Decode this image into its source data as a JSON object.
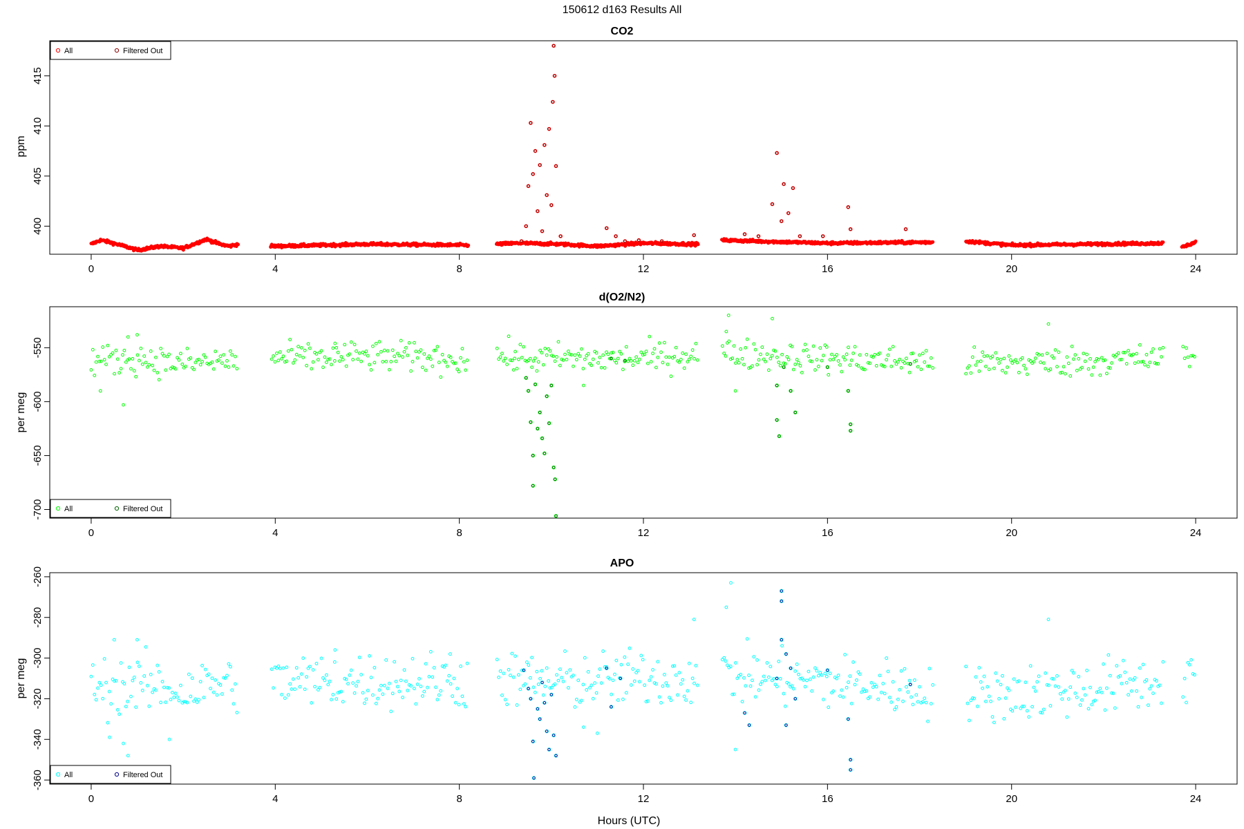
{
  "page": {
    "main_title": "150612   d163   Results All",
    "x_label": "Hours (UTC)"
  },
  "chart_data": [
    {
      "type": "scatter",
      "title": "CO2",
      "xlabel": "",
      "ylabel": "ppm",
      "xlim": [
        -0.9,
        24.9
      ],
      "ylim": [
        397.2,
        418.5
      ],
      "x_ticks": [
        0,
        4,
        8,
        12,
        16,
        20,
        24
      ],
      "x_tick_labels": [
        "0",
        "4",
        "8",
        "12",
        "16",
        "20",
        "24"
      ],
      "y_ticks": [
        400,
        405,
        410,
        415
      ],
      "y_tick_labels": [
        "400",
        "405",
        "410",
        "415"
      ],
      "legend": {
        "position": "top-left",
        "entries": [
          "All",
          "Filtered Out"
        ]
      },
      "colors": {
        "all": "#ff0000",
        "filtered": "#8b0000"
      },
      "gaps": [
        [
          3.2,
          3.9
        ],
        [
          8.2,
          8.8
        ],
        [
          13.2,
          13.7
        ],
        [
          18.3,
          19.0
        ],
        [
          23.3,
          23.7
        ]
      ],
      "series": [
        {
          "name": "All",
          "profile": [
            [
              0,
              398.2
            ],
            [
              0.2,
              398.6
            ],
            [
              0.4,
              398.4
            ],
            [
              0.8,
              397.9
            ],
            [
              1.0,
              397.6
            ],
            [
              1.5,
              398.0
            ],
            [
              2.0,
              397.8
            ],
            [
              2.5,
              398.7
            ],
            [
              2.8,
              398.2
            ],
            [
              3.0,
              398.0
            ],
            [
              3.2,
              398.2
            ],
            [
              4.0,
              398.0
            ],
            [
              6.0,
              398.2
            ],
            [
              8.2,
              398.1
            ],
            [
              8.8,
              398.2
            ],
            [
              9.3,
              398.3
            ],
            [
              10.2,
              398.2
            ],
            [
              11.0,
              398.0
            ],
            [
              12.0,
              398.3
            ],
            [
              13.2,
              398.2
            ],
            [
              13.7,
              398.6
            ],
            [
              16.0,
              398.3
            ],
            [
              18.3,
              398.4
            ],
            [
              19.0,
              398.5
            ],
            [
              20.0,
              398.1
            ],
            [
              23.3,
              398.3
            ],
            [
              23.7,
              397.9
            ],
            [
              24.0,
              398.4
            ]
          ],
          "spread": 0.12
        },
        {
          "name": "Filtered Out",
          "points": [
            [
              9.35,
              398.5
            ],
            [
              9.45,
              400.0
            ],
            [
              9.5,
              404.0
            ],
            [
              9.55,
              410.3
            ],
            [
              9.6,
              405.2
            ],
            [
              9.65,
              407.5
            ],
            [
              9.7,
              401.5
            ],
            [
              9.75,
              406.1
            ],
            [
              9.8,
              399.5
            ],
            [
              9.85,
              408.1
            ],
            [
              9.9,
              403.1
            ],
            [
              9.95,
              409.7
            ],
            [
              10.0,
              402.1
            ],
            [
              10.03,
              412.4
            ],
            [
              10.05,
              418.0
            ],
            [
              10.07,
              415.0
            ],
            [
              10.1,
              406.0
            ],
            [
              10.2,
              399.0
            ],
            [
              11.2,
              399.8
            ],
            [
              11.4,
              399.0
            ],
            [
              11.6,
              398.5
            ],
            [
              11.9,
              398.6
            ],
            [
              12.4,
              398.5
            ],
            [
              13.1,
              399.1
            ],
            [
              14.2,
              399.2
            ],
            [
              14.5,
              399.0
            ],
            [
              14.8,
              402.2
            ],
            [
              14.9,
              407.3
            ],
            [
              15.0,
              400.5
            ],
            [
              15.05,
              404.2
            ],
            [
              15.15,
              401.3
            ],
            [
              15.25,
              403.8
            ],
            [
              15.4,
              399.0
            ],
            [
              15.9,
              399.0
            ],
            [
              16.45,
              401.9
            ],
            [
              16.5,
              399.7
            ],
            [
              17.7,
              399.7
            ]
          ]
        }
      ]
    },
    {
      "type": "scatter",
      "title": "d(O2/N2)",
      "xlabel": "",
      "ylabel": "per meg",
      "xlim": [
        -0.9,
        24.9
      ],
      "ylim": [
        -708,
        -512
      ],
      "x_ticks": [
        0,
        4,
        8,
        12,
        16,
        20,
        24
      ],
      "x_tick_labels": [
        "0",
        "4",
        "8",
        "12",
        "16",
        "20",
        "24"
      ],
      "y_ticks": [
        -700,
        -650,
        -600,
        -550
      ],
      "y_tick_labels": [
        "-700",
        "-650",
        "-600",
        "-550"
      ],
      "legend": {
        "position": "bottom-left",
        "entries": [
          "All",
          "Filtered Out"
        ]
      },
      "colors": {
        "all": "#00ff00",
        "filtered": "#006400"
      },
      "gaps": [
        [
          3.2,
          3.9
        ],
        [
          8.2,
          8.8
        ],
        [
          13.2,
          13.7
        ],
        [
          18.3,
          19.0
        ],
        [
          23.3,
          23.7
        ]
      ],
      "series": [
        {
          "name": "All",
          "profile": [
            [
              0,
              -562
            ],
            [
              1,
              -560
            ],
            [
              2,
              -565
            ],
            [
              3,
              -562
            ],
            [
              4,
              -560
            ],
            [
              6,
              -558
            ],
            [
              8,
              -560
            ],
            [
              8.8,
              -558
            ],
            [
              9.3,
              -560
            ],
            [
              10.2,
              -560
            ],
            [
              12,
              -560
            ],
            [
              13.2,
              -555
            ],
            [
              13.7,
              -555
            ],
            [
              16,
              -560
            ],
            [
              18.3,
              -563
            ],
            [
              19,
              -565
            ],
            [
              21,
              -563
            ],
            [
              23.3,
              -560
            ],
            [
              23.7,
              -558
            ],
            [
              24,
              -555
            ]
          ],
          "spread": 7,
          "outliers": [
            [
              0.7,
              -603
            ],
            [
              0.2,
              -590
            ],
            [
              1.0,
              -538
            ],
            [
              0.8,
              -540
            ],
            [
              5.3,
              -546
            ],
            [
              13.85,
              -520
            ],
            [
              13.8,
              -535
            ],
            [
              14.0,
              -590
            ],
            [
              14.8,
              -523
            ],
            [
              10.7,
              -585
            ],
            [
              20.8,
              -528
            ],
            [
              9.2,
              -560
            ]
          ]
        },
        {
          "name": "Filtered Out",
          "points": [
            [
              9.45,
              -578
            ],
            [
              9.5,
              -590
            ],
            [
              9.55,
              -619
            ],
            [
              9.6,
              -650
            ],
            [
              9.6,
              -678
            ],
            [
              9.65,
              -584
            ],
            [
              9.7,
              -625
            ],
            [
              9.75,
              -610
            ],
            [
              9.8,
              -634
            ],
            [
              9.85,
              -648
            ],
            [
              9.9,
              -595
            ],
            [
              9.95,
              -620
            ],
            [
              10.0,
              -585
            ],
            [
              10.05,
              -661
            ],
            [
              10.08,
              -672
            ],
            [
              10.1,
              -706
            ],
            [
              11.3,
              -560
            ],
            [
              11.6,
              -562
            ],
            [
              14.9,
              -585
            ],
            [
              14.9,
              -617
            ],
            [
              14.95,
              -632
            ],
            [
              15.05,
              -568
            ],
            [
              15.2,
              -590
            ],
            [
              15.3,
              -610
            ],
            [
              16.0,
              -568
            ],
            [
              16.45,
              -590
            ],
            [
              16.5,
              -621
            ],
            [
              16.5,
              -627
            ],
            [
              17.8,
              -565
            ]
          ]
        }
      ]
    },
    {
      "type": "scatter",
      "title": "APO",
      "xlabel": "Hours (UTC)",
      "ylabel": "per meg",
      "xlim": [
        -0.9,
        24.9
      ],
      "ylim": [
        -362,
        -258
      ],
      "x_ticks": [
        0,
        4,
        8,
        12,
        16,
        20,
        24
      ],
      "x_tick_labels": [
        "0",
        "4",
        "8",
        "12",
        "16",
        "20",
        "24"
      ],
      "y_ticks": [
        -360,
        -340,
        -320,
        -300,
        -280,
        -260
      ],
      "y_tick_labels": [
        "-360",
        "-340",
        "-320",
        "-300",
        "-280",
        "-260"
      ],
      "legend": {
        "position": "bottom-left",
        "entries": [
          "All",
          "Filtered Out"
        ]
      },
      "colors": {
        "all": "#00ffff",
        "filtered": "#00008b"
      },
      "gaps": [
        [
          3.2,
          3.9
        ],
        [
          8.2,
          8.8
        ],
        [
          13.2,
          13.7
        ],
        [
          18.3,
          19.0
        ],
        [
          23.3,
          23.7
        ]
      ],
      "series": [
        {
          "name": "All",
          "profile": [
            [
              0,
              -315
            ],
            [
              1,
              -313
            ],
            [
              2,
              -316
            ],
            [
              3,
              -312
            ],
            [
              4,
              -312
            ],
            [
              6,
              -311
            ],
            [
              8,
              -311
            ],
            [
              8.8,
              -310
            ],
            [
              9.3,
              -311
            ],
            [
              10.2,
              -312
            ],
            [
              12,
              -310
            ],
            [
              13.2,
              -309
            ],
            [
              13.7,
              -308
            ],
            [
              16,
              -312
            ],
            [
              18.3,
              -316
            ],
            [
              19,
              -318
            ],
            [
              21,
              -316
            ],
            [
              23.3,
              -312
            ],
            [
              23.7,
              -310
            ],
            [
              24,
              -305
            ]
          ],
          "spread": 7,
          "outliers": [
            [
              0.4,
              -339
            ],
            [
              0.7,
              -342
            ],
            [
              0.8,
              -348
            ],
            [
              1.0,
              -291
            ],
            [
              0.5,
              -291
            ],
            [
              1.7,
              -340
            ],
            [
              13.1,
              -281
            ],
            [
              13.9,
              -263
            ],
            [
              13.8,
              -275
            ],
            [
              14.0,
              -345
            ],
            [
              20.8,
              -281
            ],
            [
              10.7,
              -334
            ],
            [
              11.0,
              -337
            ],
            [
              5.3,
              -296
            ],
            [
              7.8,
              -298
            ]
          ]
        },
        {
          "name": "Filtered Out",
          "points": [
            [
              9.4,
              -306
            ],
            [
              9.5,
              -315
            ],
            [
              9.55,
              -320
            ],
            [
              9.6,
              -341
            ],
            [
              9.62,
              -359
            ],
            [
              9.7,
              -325
            ],
            [
              9.75,
              -330
            ],
            [
              9.8,
              -312
            ],
            [
              9.85,
              -322
            ],
            [
              9.9,
              -336
            ],
            [
              9.95,
              -345
            ],
            [
              10.0,
              -318
            ],
            [
              10.05,
              -338
            ],
            [
              10.1,
              -348
            ],
            [
              11.2,
              -305
            ],
            [
              11.5,
              -310
            ],
            [
              11.3,
              -324
            ],
            [
              14.2,
              -327
            ],
            [
              14.3,
              -333
            ],
            [
              14.9,
              -310
            ],
            [
              15.0,
              -267
            ],
            [
              15.0,
              -272
            ],
            [
              15.0,
              -291
            ],
            [
              15.1,
              -298
            ],
            [
              15.2,
              -305
            ],
            [
              15.3,
              -320
            ],
            [
              15.1,
              -333
            ],
            [
              16.0,
              -306
            ],
            [
              16.45,
              -330
            ],
            [
              16.5,
              -350
            ],
            [
              16.5,
              -355
            ],
            [
              17.8,
              -313
            ]
          ]
        }
      ]
    }
  ]
}
